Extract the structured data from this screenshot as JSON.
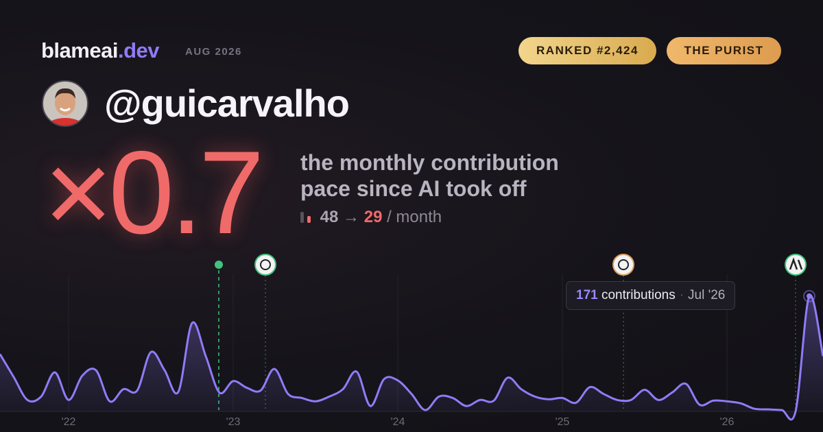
{
  "header": {
    "brand": "blameai",
    "brand_tld": ".dev",
    "date": "AUG 2026",
    "badges": [
      "RANKED #2,424",
      "THE PURIST"
    ],
    "handle": "@guicarvalho"
  },
  "summary": {
    "multiplier": "×0.7",
    "caption": [
      "the monthly contribution",
      "pace since AI took off"
    ],
    "before": "48",
    "arrow": "→",
    "after": "29",
    "unit": "/ month"
  },
  "chart_data": {
    "type": "line",
    "categories": [
      null,
      null,
      null,
      null,
      null,
      "'22",
      null,
      null,
      null,
      null,
      null,
      null,
      null,
      null,
      null,
      null,
      null,
      "'23",
      null,
      null,
      null,
      null,
      null,
      null,
      null,
      null,
      null,
      null,
      null,
      "'24",
      null,
      null,
      null,
      null,
      null,
      null,
      null,
      null,
      null,
      null,
      null,
      "'25",
      null,
      null,
      null,
      null,
      null,
      null,
      null,
      null,
      null,
      null,
      null,
      "'26",
      null,
      null,
      null,
      null,
      null,
      null,
      null
    ],
    "values": [
      85,
      51,
      17,
      22,
      58,
      17,
      53,
      61,
      15,
      33,
      31,
      88,
      61,
      29,
      131,
      82,
      28,
      45,
      35,
      31,
      63,
      26,
      20,
      15,
      22,
      33,
      59,
      8,
      48,
      46,
      26,
      2,
      22,
      20,
      8,
      17,
      16,
      50,
      33,
      22,
      18,
      20,
      13,
      36,
      26,
      17,
      17,
      32,
      17,
      28,
      41,
      10,
      16,
      15,
      12,
      4,
      3,
      2,
      0,
      171,
      82
    ],
    "color": "#8f7cf7",
    "ylim": [
      0,
      180
    ],
    "grid": true,
    "tooltip": {
      "label": "contributions",
      "period": "Jul '26"
    }
  }
}
